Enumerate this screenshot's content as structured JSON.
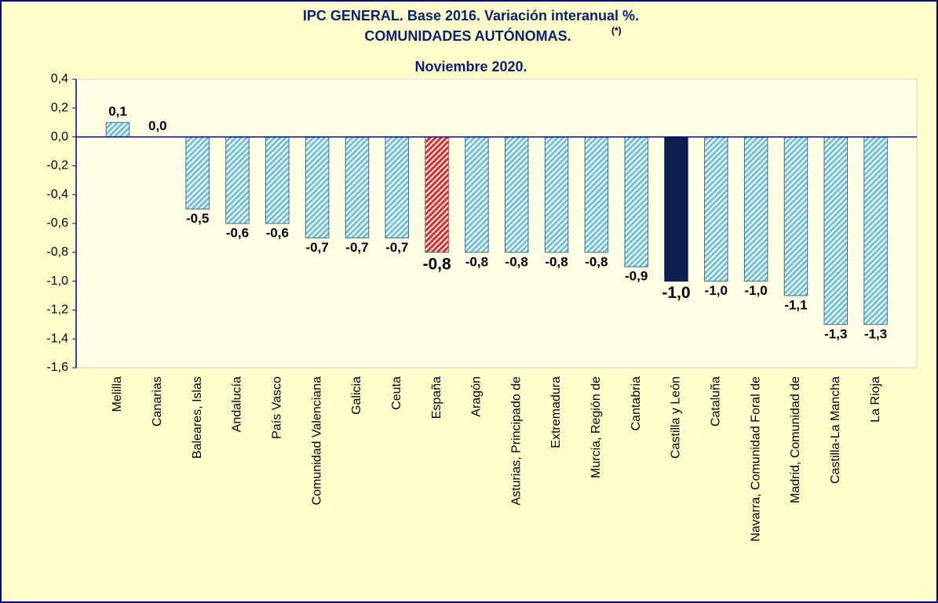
{
  "chart_data": {
    "type": "bar",
    "title": [
      "IPC GENERAL. Base 2016. Variación interanual %.",
      "COMUNIDADES AUTÓNOMAS.",
      "Noviembre 2020."
    ],
    "title_note": "(*)",
    "categories": [
      "Melilla",
      "Canarias",
      "Baleares, Islas",
      "Andalucía",
      "País Vasco",
      "Comunidad Valenciana",
      "Galicia",
      "Ceuta",
      "España",
      "Aragón",
      "Asturias, Principado de",
      "Extremadura",
      "Murcia, Región de",
      "Cantabria",
      "Castilla y León",
      "Cataluña",
      "Navarra, Comunidad Foral de",
      "Madrid, Comunidad de",
      "Castilla-La Mancha",
      "La Rioja"
    ],
    "values": [
      0.1,
      0.0,
      -0.5,
      -0.6,
      -0.6,
      -0.7,
      -0.7,
      -0.7,
      -0.8,
      -0.8,
      -0.8,
      -0.8,
      -0.8,
      -0.9,
      -1.0,
      -1.0,
      -1.0,
      -1.1,
      -1.3,
      -1.3
    ],
    "value_labels": [
      "0,1",
      "0,0",
      "-0,5",
      "-0,6",
      "-0,6",
      "-0,7",
      "-0,7",
      "-0,7",
      "-0,8",
      "-0,8",
      "-0,8",
      "-0,8",
      "-0,8",
      "-0,9",
      "-1,0",
      "-1,0",
      "-1,0",
      "-1,1",
      "-1,3",
      "-1,3"
    ],
    "colors": [
      "#6fc0de",
      "#6fc0de",
      "#6fc0de",
      "#6fc0de",
      "#6fc0de",
      "#6fc0de",
      "#6fc0de",
      "#6fc0de",
      "#e8251f",
      "#6fc0de",
      "#6fc0de",
      "#6fc0de",
      "#6fc0de",
      "#6fc0de",
      "#0b1f4f",
      "#6fc0de",
      "#6fc0de",
      "#6fc0de",
      "#6fc0de",
      "#6fc0de"
    ],
    "bar_patterns": [
      "hatch",
      "hatch",
      "hatch",
      "hatch",
      "hatch",
      "hatch",
      "hatch",
      "hatch",
      "hatch",
      "hatch",
      "hatch",
      "hatch",
      "hatch",
      "hatch",
      "solid",
      "hatch",
      "hatch",
      "hatch",
      "hatch",
      "hatch"
    ],
    "label_colors": [
      "#17375e",
      "#17375e",
      "#17375e",
      "#17375e",
      "#17375e",
      "#17375e",
      "#17375e",
      "#17375e",
      "#e8251f",
      "#17375e",
      "#17375e",
      "#17375e",
      "#17375e",
      "#17375e",
      "#0b1f4f",
      "#17375e",
      "#17375e",
      "#17375e",
      "#17375e",
      "#17375e"
    ],
    "ylim": [
      -1.6,
      0.4
    ],
    "yticks": [
      {
        "value": 0.4,
        "label": "0,4"
      },
      {
        "value": 0.2,
        "label": "0,2"
      },
      {
        "value": 0.0,
        "label": "0,0"
      },
      {
        "value": -0.2,
        "label": "-0,2"
      },
      {
        "value": -0.4,
        "label": "-0,4"
      },
      {
        "value": -0.6,
        "label": "-0,6"
      },
      {
        "value": -0.8,
        "label": "-0,8"
      },
      {
        "value": -1.0,
        "label": "-1,0"
      },
      {
        "value": -1.2,
        "label": "-1,2"
      },
      {
        "value": -1.4,
        "label": "-1,4"
      },
      {
        "value": -1.6,
        "label": "-1,6"
      }
    ]
  }
}
